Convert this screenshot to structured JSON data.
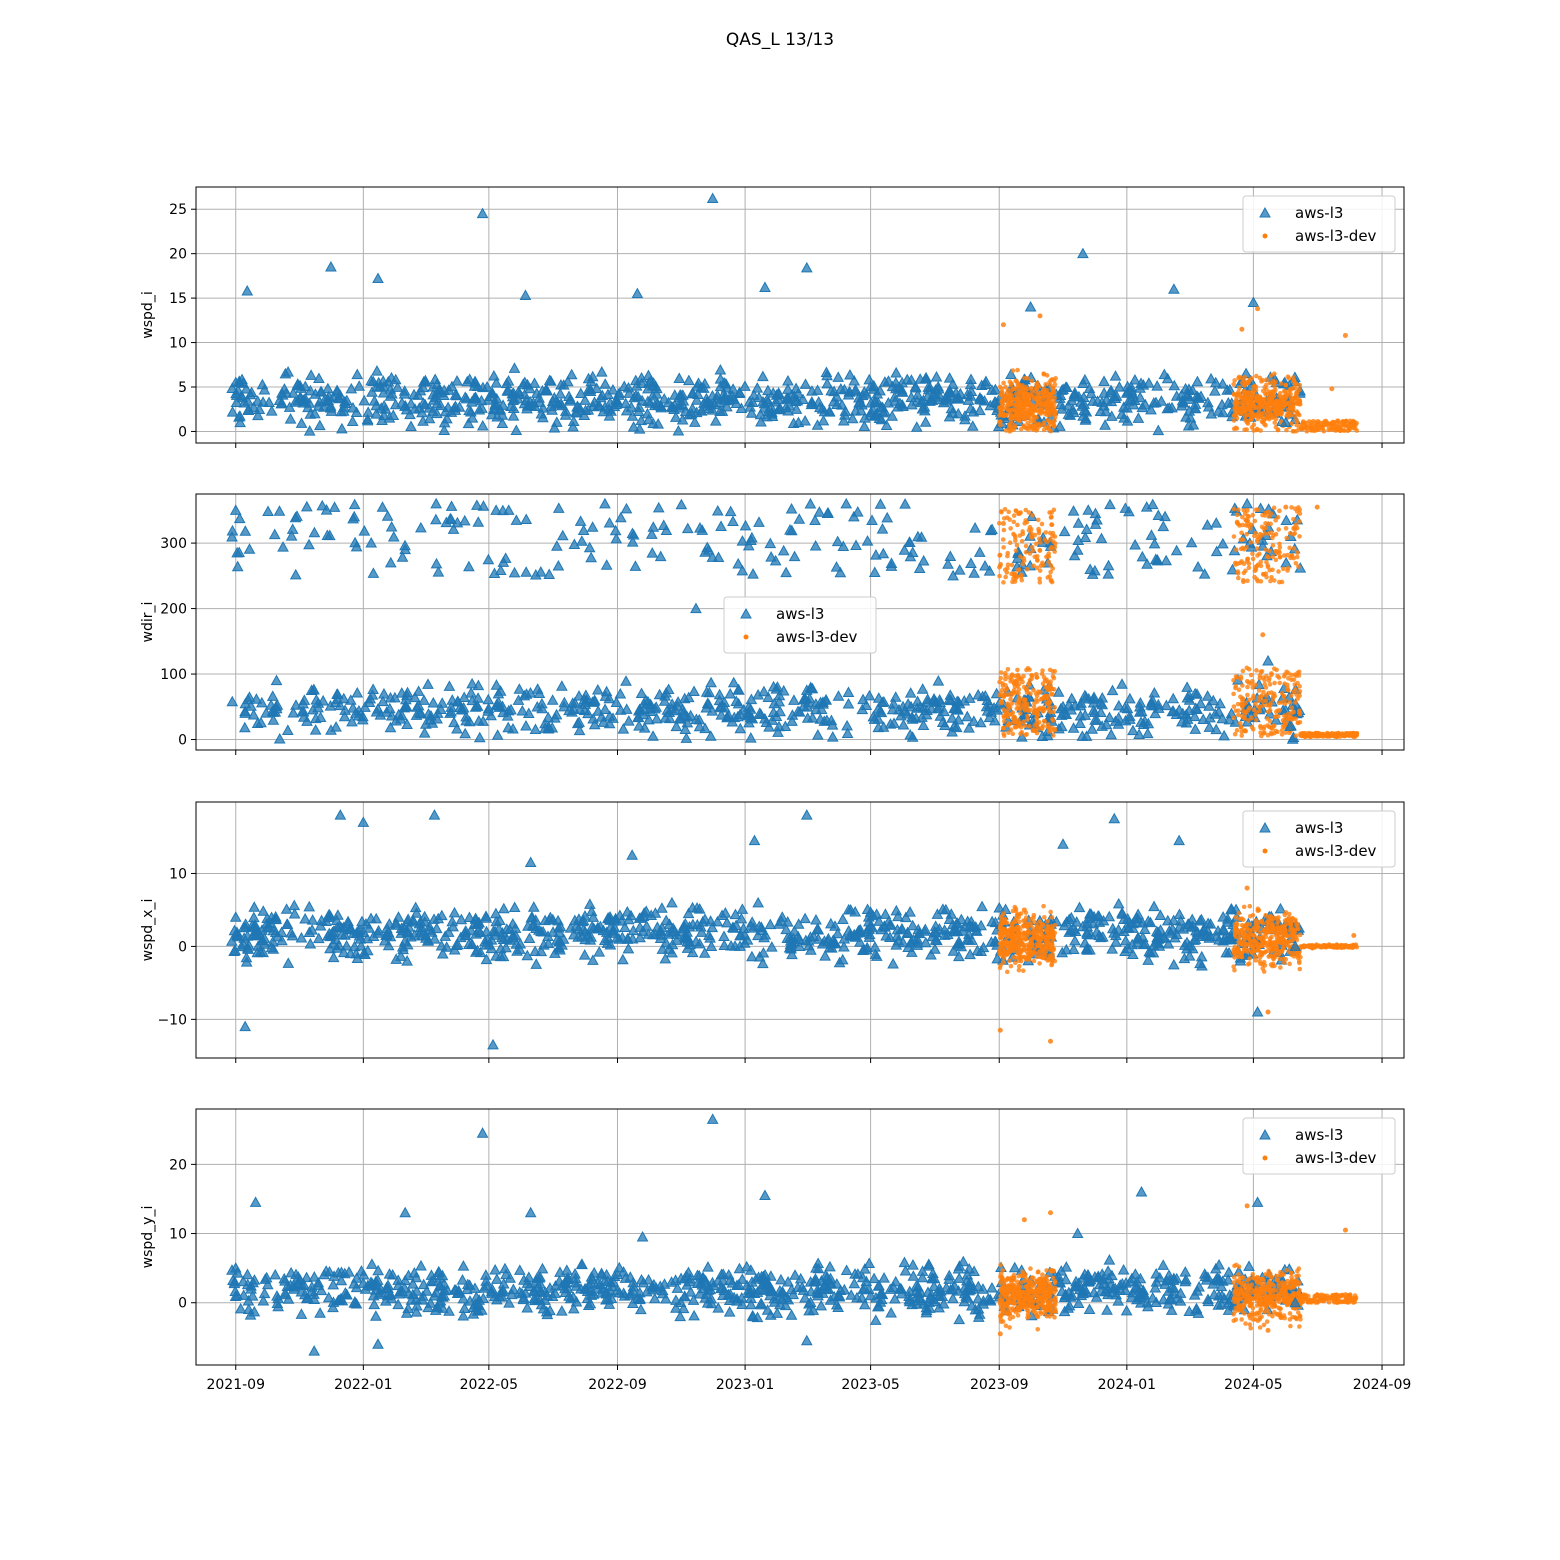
{
  "figure": {
    "title": "QAS_L 13/13"
  },
  "colors": {
    "aws-l3": "#1f77b4",
    "aws-l3-dev": "#ff7f0e",
    "grid": "#b0b0b0"
  },
  "chart_data": [
    {
      "type": "scatter",
      "ylabel": "wspd_i",
      "xlim": [
        "2021-07-25",
        "2024-09-22"
      ],
      "ylim": [
        -1.3,
        27.5
      ],
      "yticks": [
        0,
        5,
        10,
        15,
        20,
        25
      ],
      "xticks": [
        "2021-09",
        "2022-01",
        "2022-05",
        "2022-09",
        "2023-01",
        "2023-05",
        "2023-09",
        "2024-01",
        "2024-05",
        "2024-09"
      ],
      "grid": true,
      "legend": "upper right",
      "series": [
        {
          "name": "aws-l3",
          "marker": "triangle",
          "x": [
            "2021-09-01",
            "2021-09-12",
            "2021-10-15",
            "2021-12-01",
            "2022-01-15",
            "2022-03-01",
            "2022-04-25",
            "2022-06-05",
            "2022-08-01",
            "2022-09-20",
            "2022-11-01",
            "2022-12-01",
            "2023-01-20",
            "2023-03-01",
            "2023-04-20",
            "2023-06-01",
            "2023-07-15",
            "2023-10-01",
            "2023-11-20",
            "2024-01-05",
            "2024-02-15",
            "2024-04-01",
            "2024-05-01",
            "2024-06-01"
          ],
          "y": [
            5.5,
            15.8,
            3.2,
            18.5,
            17.2,
            3.0,
            24.5,
            15.3,
            3.5,
            15.5,
            4.0,
            26.2,
            16.2,
            18.4,
            3.2,
            2.8,
            4.5,
            14.0,
            20.0,
            5.0,
            16.0,
            3.0,
            14.5,
            1.0
          ]
        },
        {
          "name": "aws-l3-dev",
          "marker": "dot",
          "x": [
            "2023-09-05",
            "2023-09-20",
            "2023-10-10",
            "2024-04-20",
            "2024-05-05",
            "2024-05-20",
            "2024-06-20",
            "2024-07-15",
            "2024-07-28",
            "2024-08-05"
          ],
          "y": [
            12.0,
            4.0,
            13.0,
            11.5,
            13.8,
            3.0,
            0.5,
            4.8,
            10.8,
            1.0
          ]
        }
      ]
    },
    {
      "type": "scatter",
      "ylabel": "wdir_i",
      "xlim": [
        "2021-07-25",
        "2024-09-22"
      ],
      "ylim": [
        -16,
        375
      ],
      "yticks": [
        0,
        100,
        200,
        300
      ],
      "xticks": [
        "2021-09",
        "2022-01",
        "2022-05",
        "2022-09",
        "2023-01",
        "2023-05",
        "2023-09",
        "2024-01",
        "2024-05",
        "2024-09"
      ],
      "grid": true,
      "legend": "center",
      "series": [
        {
          "name": "aws-l3",
          "marker": "triangle",
          "x": [
            "2021-09-01",
            "2021-09-10",
            "2021-10-10",
            "2021-12-20",
            "2022-02-10",
            "2022-04-15",
            "2022-05-20",
            "2022-07-01",
            "2022-08-20",
            "2022-10-01",
            "2022-11-15",
            "2023-01-15",
            "2023-03-01",
            "2023-04-15",
            "2023-06-01",
            "2023-07-20",
            "2023-11-01",
            "2024-01-20",
            "2024-03-01",
            "2024-04-25",
            "2024-05-15",
            "2024-06-05"
          ],
          "y": [
            350,
            40,
            90,
            60,
            290,
            85,
            350,
            60,
            360,
            30,
            200,
            40,
            75,
            340,
            50,
            20,
            50,
            355,
            60,
            360,
            120,
            20
          ]
        },
        {
          "name": "aws-l3-dev",
          "marker": "dot",
          "x": [
            "2023-09-05",
            "2023-09-20",
            "2023-10-15",
            "2024-04-25",
            "2024-05-10",
            "2024-06-01",
            "2024-07-01",
            "2024-07-20",
            "2024-08-05"
          ],
          "y": [
            330,
            60,
            90,
            350,
            160,
            355,
            355,
            5,
            8
          ]
        }
      ]
    },
    {
      "type": "scatter",
      "ylabel": "wspd_x_i",
      "xlim": [
        "2021-07-25",
        "2024-09-22"
      ],
      "ylim": [
        -15.3,
        19.8
      ],
      "yticks": [
        -10,
        0,
        10
      ],
      "xticks": [
        "2021-09",
        "2022-01",
        "2022-05",
        "2022-09",
        "2023-01",
        "2023-05",
        "2023-09",
        "2024-01",
        "2024-05",
        "2024-09"
      ],
      "grid": true,
      "legend": "upper right",
      "series": [
        {
          "name": "aws-l3",
          "marker": "triangle",
          "x": [
            "2021-09-01",
            "2021-09-10",
            "2021-10-20",
            "2021-12-10",
            "2022-01-01",
            "2022-03-10",
            "2022-05-05",
            "2022-06-10",
            "2022-08-01",
            "2022-09-15",
            "2022-11-01",
            "2023-01-10",
            "2023-03-01",
            "2023-04-10",
            "2023-06-01",
            "2023-07-20",
            "2023-11-01",
            "2023-12-20",
            "2024-02-20",
            "2024-04-10",
            "2024-05-05",
            "2024-06-10"
          ],
          "y": [
            4.0,
            -11.0,
            3.0,
            18.0,
            17.0,
            18.0,
            -13.5,
            11.5,
            2.0,
            12.5,
            2.0,
            14.5,
            18.0,
            5.0,
            0.5,
            2.0,
            14.0,
            17.5,
            14.5,
            1.0,
            -9.0,
            0.0
          ]
        },
        {
          "name": "aws-l3-dev",
          "marker": "dot",
          "x": [
            "2023-09-02",
            "2023-09-25",
            "2023-10-20",
            "2024-04-25",
            "2024-05-15",
            "2024-07-10",
            "2024-08-05"
          ],
          "y": [
            -11.5,
            5.0,
            -13.0,
            8.0,
            -9.0,
            0.0,
            1.5
          ]
        }
      ]
    },
    {
      "type": "scatter",
      "ylabel": "wspd_y_i",
      "xlim": [
        "2021-07-25",
        "2024-09-22"
      ],
      "ylim": [
        -9,
        28
      ],
      "yticks": [
        0,
        10,
        20
      ],
      "xticks": [
        "2021-09",
        "2022-01",
        "2022-05",
        "2022-09",
        "2023-01",
        "2023-05",
        "2023-09",
        "2024-01",
        "2024-05",
        "2024-09"
      ],
      "grid": true,
      "legend": "upper right",
      "series": [
        {
          "name": "aws-l3",
          "marker": "triangle",
          "x": [
            "2021-09-01",
            "2021-09-20",
            "2021-11-15",
            "2022-01-15",
            "2022-02-10",
            "2022-04-25",
            "2022-06-10",
            "2022-08-01",
            "2022-09-25",
            "2022-12-01",
            "2023-01-20",
            "2023-03-01",
            "2023-05-01",
            "2023-07-01",
            "2023-11-15",
            "2024-01-15",
            "2024-04-01",
            "2024-05-05",
            "2024-06-10"
          ],
          "y": [
            5.0,
            14.5,
            -7.0,
            -6.0,
            13.0,
            24.5,
            13.0,
            2.0,
            9.5,
            26.5,
            15.5,
            -5.5,
            1.0,
            3.5,
            10.0,
            16.0,
            1.0,
            14.5,
            0.0
          ]
        },
        {
          "name": "aws-l3-dev",
          "marker": "dot",
          "x": [
            "2023-09-02",
            "2023-09-25",
            "2023-10-20",
            "2024-04-25",
            "2024-05-15",
            "2024-07-10",
            "2024-07-28",
            "2024-08-05"
          ],
          "y": [
            -4.5,
            12.0,
            13.0,
            14.0,
            -4.0,
            0.5,
            10.5,
            0.5
          ]
        }
      ]
    }
  ]
}
